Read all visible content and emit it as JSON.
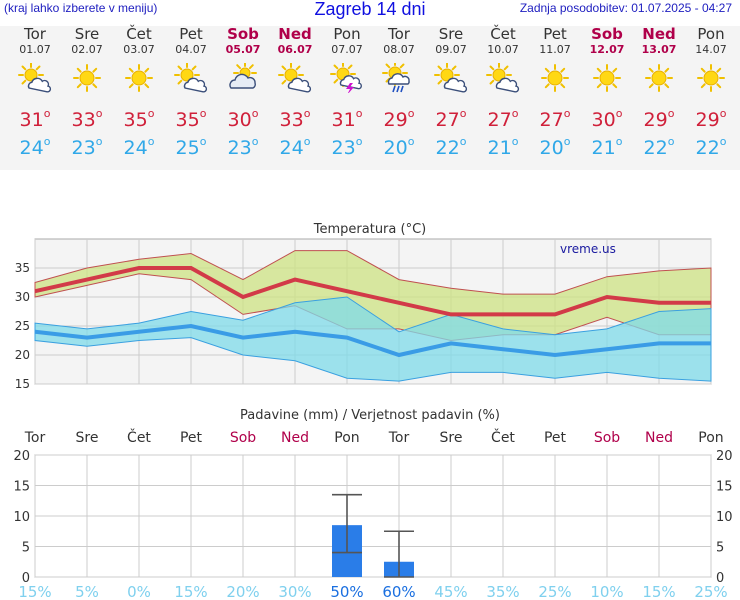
{
  "header": {
    "hint": "(kraj lahko izberete v meniju)",
    "title": "Zagreb 14 dni",
    "updated": "Zadnja posodobitev: 01.07.2025 - 04:27"
  },
  "days": [
    {
      "name": "Tor",
      "date": "01.07",
      "icon": "sun-cloud-icon",
      "max": "31",
      "min": "24",
      "weekend": false
    },
    {
      "name": "Sre",
      "date": "02.07",
      "icon": "sun-icon",
      "max": "33",
      "min": "23",
      "weekend": false
    },
    {
      "name": "Čet",
      "date": "03.07",
      "icon": "sun-icon",
      "max": "35",
      "min": "24",
      "weekend": false
    },
    {
      "name": "Pet",
      "date": "04.07",
      "icon": "sun-cloud-icon",
      "max": "35",
      "min": "25",
      "weekend": false
    },
    {
      "name": "Sob",
      "date": "05.07",
      "icon": "cloud-sun-icon",
      "max": "30",
      "min": "23",
      "weekend": true
    },
    {
      "name": "Ned",
      "date": "06.07",
      "icon": "sun-cloud-icon",
      "max": "33",
      "min": "24",
      "weekend": true
    },
    {
      "name": "Pon",
      "date": "07.07",
      "icon": "sun-thunder-icon",
      "max": "31",
      "min": "23",
      "weekend": false
    },
    {
      "name": "Tor",
      "date": "08.07",
      "icon": "sun-rain-icon",
      "max": "29",
      "min": "20",
      "weekend": false
    },
    {
      "name": "Sre",
      "date": "09.07",
      "icon": "sun-cloud-icon",
      "max": "27",
      "min": "22",
      "weekend": false
    },
    {
      "name": "Čet",
      "date": "10.07",
      "icon": "sun-cloud-icon",
      "max": "27",
      "min": "21",
      "weekend": false
    },
    {
      "name": "Pet",
      "date": "11.07",
      "icon": "sun-icon",
      "max": "27",
      "min": "20",
      "weekend": false
    },
    {
      "name": "Sob",
      "date": "12.07",
      "icon": "sun-icon",
      "max": "30",
      "min": "21",
      "weekend": true
    },
    {
      "name": "Ned",
      "date": "13.07",
      "icon": "sun-icon",
      "max": "29",
      "min": "22",
      "weekend": true
    },
    {
      "name": "Pon",
      "date": "14.07",
      "icon": "sun-icon",
      "max": "29",
      "min": "22",
      "weekend": false
    }
  ],
  "degree_symbol": "o",
  "colors": {
    "max": "#d0203a",
    "min": "#30a8e8",
    "weekend": "#b0004a",
    "bar": "#2a7de8"
  },
  "chart_data": [
    {
      "type": "line",
      "title": "Temperatura (°C)",
      "watermark": "vreme.us",
      "categories": [
        "01.07",
        "02.07",
        "03.07",
        "04.07",
        "05.07",
        "06.07",
        "07.07",
        "08.07",
        "09.07",
        "10.07",
        "11.07",
        "12.07",
        "13.07",
        "14.07"
      ],
      "ylim": [
        15,
        40
      ],
      "yticks": [
        15,
        20,
        25,
        30,
        35
      ],
      "grid": true,
      "series": [
        {
          "role": "max",
          "values": [
            31,
            33,
            35,
            35,
            30,
            33,
            31,
            29,
            27,
            27,
            27,
            30,
            29,
            29
          ]
        },
        {
          "role": "min",
          "values": [
            24,
            23,
            24,
            25,
            23,
            24,
            23,
            20,
            22,
            21,
            20,
            21,
            22,
            22
          ]
        },
        {
          "role": "max_range_high",
          "values": [
            32.5,
            35,
            36.5,
            37.5,
            33,
            38,
            38,
            33,
            31.5,
            30.5,
            30.5,
            33.5,
            34.5,
            35
          ]
        },
        {
          "role": "max_range_low",
          "values": [
            30,
            32,
            34,
            33,
            27,
            28.5,
            24.5,
            24.5,
            22.5,
            23.5,
            23.5,
            26.5,
            23.5,
            23.5
          ]
        },
        {
          "role": "min_range_high",
          "values": [
            25.5,
            24.5,
            25.5,
            27.5,
            26,
            29,
            30,
            24,
            27,
            24.5,
            23.5,
            24.5,
            27.5,
            28
          ]
        },
        {
          "role": "min_range_low",
          "values": [
            22.5,
            21.5,
            22.5,
            23,
            20,
            19,
            16,
            15.5,
            17,
            17,
            16,
            17,
            16,
            15.5
          ]
        }
      ]
    },
    {
      "type": "bar",
      "title": "Padavine (mm) / Verjetnost padavin (%)",
      "categories": [
        "Tor",
        "Sre",
        "Čet",
        "Pet",
        "Sob",
        "Ned",
        "Pon",
        "Tor",
        "Sre",
        "Čet",
        "Pet",
        "Sob",
        "Ned",
        "Pon"
      ],
      "weekend": [
        false,
        false,
        false,
        false,
        true,
        true,
        false,
        false,
        false,
        false,
        false,
        true,
        true,
        false
      ],
      "ylim": [
        0,
        20
      ],
      "yticks": [
        0,
        5,
        10,
        15,
        20
      ],
      "grid": true,
      "series": [
        {
          "role": "precipitation",
          "values": [
            0,
            0,
            0,
            0,
            0,
            0,
            8.5,
            2.5,
            0,
            0,
            0,
            0,
            0,
            0
          ]
        },
        {
          "role": "error_low",
          "values": [
            null,
            null,
            null,
            null,
            null,
            null,
            4,
            0,
            null,
            null,
            null,
            null,
            null,
            null
          ]
        },
        {
          "role": "error_high",
          "values": [
            null,
            null,
            null,
            null,
            null,
            null,
            13.5,
            7.5,
            null,
            null,
            null,
            null,
            null,
            null
          ]
        }
      ],
      "probability": [
        "15%",
        "5%",
        "0%",
        "15%",
        "20%",
        "30%",
        "50%",
        "60%",
        "45%",
        "35%",
        "25%",
        "10%",
        "15%",
        "25%"
      ],
      "probability_highlight": [
        false,
        false,
        false,
        false,
        false,
        false,
        true,
        true,
        false,
        false,
        false,
        false,
        false,
        false
      ]
    }
  ]
}
